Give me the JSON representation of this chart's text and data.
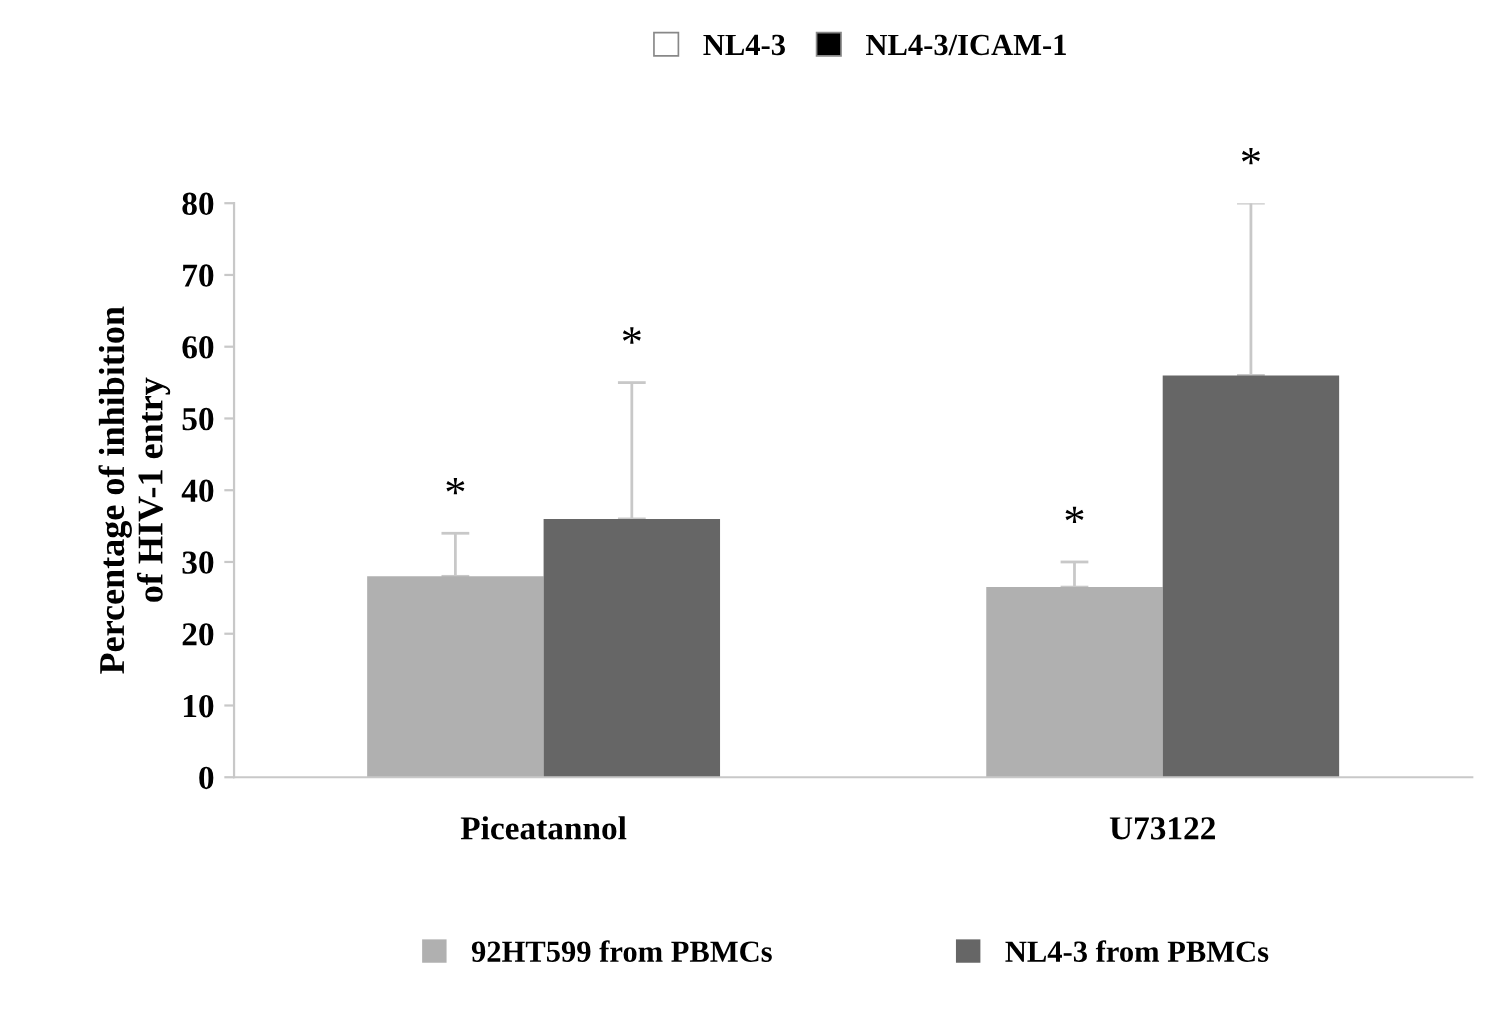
{
  "chart_data": {
    "type": "bar",
    "ylabel": "Percentage of inhibition\nof HIV-1 entry",
    "categories": [
      "Piceatannol",
      "U73122"
    ],
    "series": [
      {
        "name": "NL4-3",
        "color": "#ffffff",
        "values": [
          null,
          null
        ]
      },
      {
        "name": "NL4-3/ICAM-1",
        "color": "#000000",
        "values": [
          null,
          null
        ]
      },
      {
        "name": "92HT599 from PBMCs",
        "color": "#b0b0b0",
        "values": [
          28,
          26.5
        ],
        "errors": [
          [
            28,
            34
          ],
          [
            26.5,
            30
          ]
        ]
      },
      {
        "name": "NL4-3 from PBMCs",
        "color": "#666666",
        "values": [
          36,
          56
        ],
        "errors": [
          [
            36,
            55
          ],
          [
            56,
            80
          ]
        ]
      }
    ],
    "annotations": [
      "*",
      "*",
      "*",
      "*"
    ],
    "ylim": [
      0,
      80
    ],
    "yticks": [
      0,
      10,
      20,
      30,
      40,
      50,
      60,
      70,
      80
    ],
    "legend": "bottom",
    "grid": false
  }
}
